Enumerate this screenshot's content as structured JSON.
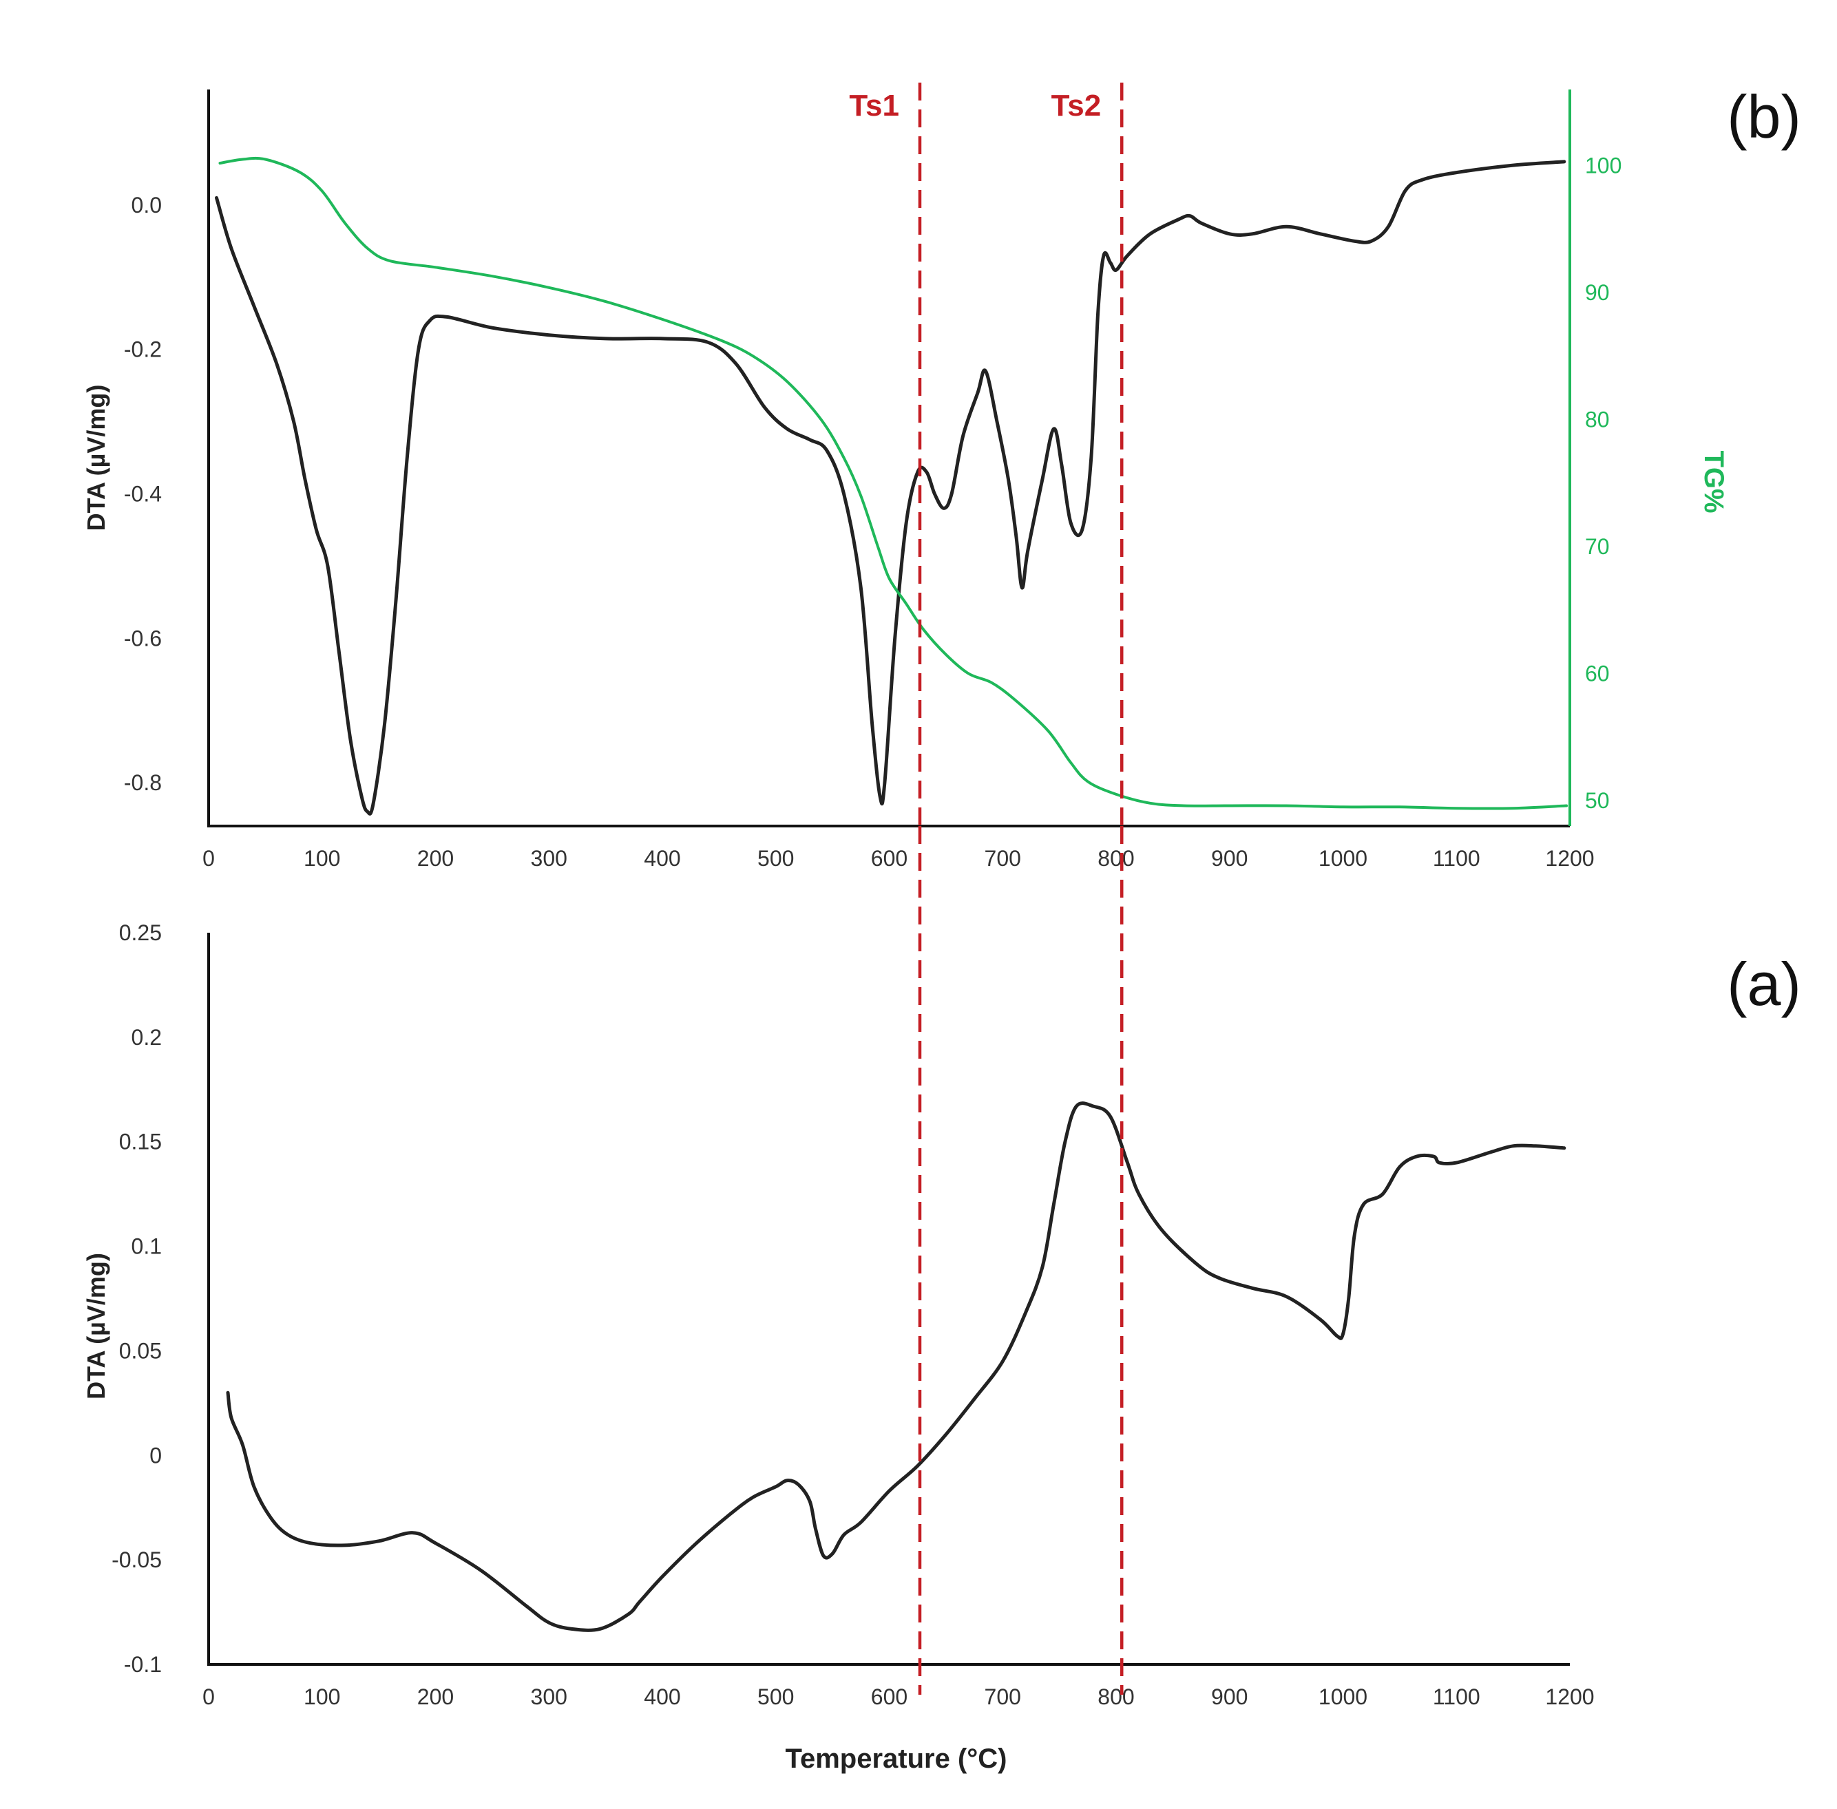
{
  "colors": {
    "dta": "#222222",
    "tg": "#1fb85a",
    "marker": "#c41e24",
    "axis": "#111111"
  },
  "chart_data": [
    {
      "panel": "(b)",
      "type": "line",
      "xlim": [
        0,
        1200
      ],
      "x_ticks": [
        "0",
        "100",
        "200",
        "300",
        "400",
        "500",
        "600",
        "700",
        "800",
        "900",
        "1000",
        "1100",
        "1200"
      ],
      "ylabel": "DTA (µV/mg)",
      "ylim": [
        -0.86,
        0.16
      ],
      "y_ticks": [
        {
          "v": 0.0,
          "label": "0.0"
        },
        {
          "v": -0.2,
          "label": "-0.2"
        },
        {
          "v": -0.4,
          "label": "-0.4"
        },
        {
          "v": -0.6,
          "label": "-0.6"
        },
        {
          "v": -0.8,
          "label": "-0.8"
        }
      ],
      "y2label": "TG%",
      "y2lim": [
        48,
        106
      ],
      "y2_ticks": [
        {
          "v": 100,
          "label": "100"
        },
        {
          "v": 90,
          "label": "90"
        },
        {
          "v": 80,
          "label": "80"
        },
        {
          "v": 70,
          "label": "70"
        },
        {
          "v": 60,
          "label": "60"
        },
        {
          "v": 50,
          "label": "50"
        }
      ],
      "markers": [
        {
          "x": 627,
          "label": "Ts1"
        },
        {
          "x": 805,
          "label": "Ts2"
        }
      ],
      "series": [
        {
          "name": "DTA",
          "axis": "left",
          "points": [
            [
              7,
              0.01
            ],
            [
              20,
              -0.06
            ],
            [
              40,
              -0.14
            ],
            [
              60,
              -0.22
            ],
            [
              75,
              -0.3
            ],
            [
              85,
              -0.38
            ],
            [
              95,
              -0.45
            ],
            [
              105,
              -0.5
            ],
            [
              115,
              -0.62
            ],
            [
              125,
              -0.74
            ],
            [
              135,
              -0.82
            ],
            [
              140,
              -0.84
            ],
            [
              145,
              -0.83
            ],
            [
              155,
              -0.72
            ],
            [
              165,
              -0.55
            ],
            [
              175,
              -0.35
            ],
            [
              185,
              -0.2
            ],
            [
              195,
              -0.16
            ],
            [
              210,
              -0.155
            ],
            [
              250,
              -0.17
            ],
            [
              300,
              -0.18
            ],
            [
              350,
              -0.185
            ],
            [
              400,
              -0.185
            ],
            [
              440,
              -0.19
            ],
            [
              465,
              -0.22
            ],
            [
              490,
              -0.28
            ],
            [
              510,
              -0.31
            ],
            [
              530,
              -0.325
            ],
            [
              545,
              -0.34
            ],
            [
              560,
              -0.4
            ],
            [
              575,
              -0.53
            ],
            [
              585,
              -0.72
            ],
            [
              592,
              -0.82
            ],
            [
              596,
              -0.8
            ],
            [
              605,
              -0.6
            ],
            [
              615,
              -0.44
            ],
            [
              625,
              -0.37
            ],
            [
              633,
              -0.37
            ],
            [
              640,
              -0.4
            ],
            [
              648,
              -0.42
            ],
            [
              655,
              -0.4
            ],
            [
              665,
              -0.32
            ],
            [
              678,
              -0.26
            ],
            [
              685,
              -0.23
            ],
            [
              695,
              -0.3
            ],
            [
              705,
              -0.38
            ],
            [
              712,
              -0.46
            ],
            [
              717,
              -0.53
            ],
            [
              722,
              -0.48
            ],
            [
              735,
              -0.38
            ],
            [
              745,
              -0.31
            ],
            [
              752,
              -0.36
            ],
            [
              760,
              -0.44
            ],
            [
              770,
              -0.45
            ],
            [
              778,
              -0.35
            ],
            [
              784,
              -0.15
            ],
            [
              789,
              -0.07
            ],
            [
              795,
              -0.08
            ],
            [
              800,
              -0.09
            ],
            [
              810,
              -0.07
            ],
            [
              830,
              -0.04
            ],
            [
              855,
              -0.02
            ],
            [
              865,
              -0.015
            ],
            [
              875,
              -0.025
            ],
            [
              900,
              -0.04
            ],
            [
              920,
              -0.04
            ],
            [
              950,
              -0.03
            ],
            [
              980,
              -0.04
            ],
            [
              1010,
              -0.05
            ],
            [
              1025,
              -0.05
            ],
            [
              1040,
              -0.03
            ],
            [
              1055,
              0.02
            ],
            [
              1070,
              0.035
            ],
            [
              1100,
              0.045
            ],
            [
              1150,
              0.055
            ],
            [
              1195,
              0.06
            ]
          ]
        },
        {
          "name": "TG%",
          "axis": "right",
          "points": [
            [
              10,
              100.2
            ],
            [
              30,
              100.5
            ],
            [
              50,
              100.5
            ],
            [
              80,
              99.5
            ],
            [
              100,
              98
            ],
            [
              120,
              95.5
            ],
            [
              140,
              93.5
            ],
            [
              160,
              92.5
            ],
            [
              200,
              92
            ],
            [
              250,
              91.3
            ],
            [
              300,
              90.4
            ],
            [
              350,
              89.3
            ],
            [
              400,
              87.9
            ],
            [
              450,
              86.3
            ],
            [
              480,
              85
            ],
            [
              510,
              83
            ],
            [
              540,
              80
            ],
            [
              560,
              77
            ],
            [
              575,
              74
            ],
            [
              590,
              70
            ],
            [
              600,
              67.5
            ],
            [
              615,
              65.5
            ],
            [
              630,
              63.5
            ],
            [
              650,
              61.5
            ],
            [
              670,
              60
            ],
            [
              690,
              59.3
            ],
            [
              710,
              58
            ],
            [
              740,
              55.5
            ],
            [
              760,
              53
            ],
            [
              775,
              51.5
            ],
            [
              800,
              50.5
            ],
            [
              830,
              49.8
            ],
            [
              860,
              49.6
            ],
            [
              900,
              49.6
            ],
            [
              950,
              49.6
            ],
            [
              1000,
              49.5
            ],
            [
              1050,
              49.5
            ],
            [
              1100,
              49.4
            ],
            [
              1150,
              49.4
            ],
            [
              1197,
              49.6
            ]
          ]
        }
      ]
    },
    {
      "panel": "(a)",
      "type": "line",
      "xlim": [
        0,
        1200
      ],
      "x_ticks": [
        "0",
        "100",
        "200",
        "300",
        "400",
        "500",
        "600",
        "700",
        "800",
        "900",
        "1000",
        "1100",
        "1200"
      ],
      "xlabel": "Temperature (°C)",
      "ylabel": "DTA (µV/mg)",
      "ylim": [
        -0.1,
        0.25
      ],
      "y_ticks": [
        {
          "v": 0.25,
          "label": "0.25"
        },
        {
          "v": 0.2,
          "label": "0.2"
        },
        {
          "v": 0.15,
          "label": "0.15"
        },
        {
          "v": 0.1,
          "label": "0.1"
        },
        {
          "v": 0.05,
          "label": "0.05"
        },
        {
          "v": 0,
          "label": "0"
        },
        {
          "v": -0.05,
          "label": "-0.05"
        },
        {
          "v": -0.1,
          "label": "-0.1"
        }
      ],
      "markers": [
        {
          "x": 627,
          "label": ""
        },
        {
          "x": 805,
          "label": ""
        }
      ],
      "series": [
        {
          "name": "DTA",
          "axis": "left",
          "points": [
            [
              17,
              0.03
            ],
            [
              20,
              0.018
            ],
            [
              30,
              0.005
            ],
            [
              40,
              -0.015
            ],
            [
              55,
              -0.03
            ],
            [
              70,
              -0.038
            ],
            [
              90,
              -0.042
            ],
            [
              120,
              -0.043
            ],
            [
              150,
              -0.041
            ],
            [
              180,
              -0.037
            ],
            [
              200,
              -0.042
            ],
            [
              240,
              -0.055
            ],
            [
              280,
              -0.072
            ],
            [
              300,
              -0.08
            ],
            [
              320,
              -0.083
            ],
            [
              345,
              -0.083
            ],
            [
              370,
              -0.076
            ],
            [
              380,
              -0.07
            ],
            [
              400,
              -0.058
            ],
            [
              430,
              -0.042
            ],
            [
              460,
              -0.028
            ],
            [
              480,
              -0.02
            ],
            [
              500,
              -0.015
            ],
            [
              510,
              -0.012
            ],
            [
              520,
              -0.014
            ],
            [
              530,
              -0.022
            ],
            [
              535,
              -0.035
            ],
            [
              542,
              -0.048
            ],
            [
              550,
              -0.047
            ],
            [
              560,
              -0.038
            ],
            [
              575,
              -0.032
            ],
            [
              600,
              -0.017
            ],
            [
              625,
              -0.005
            ],
            [
              650,
              0.01
            ],
            [
              675,
              0.027
            ],
            [
              700,
              0.045
            ],
            [
              720,
              0.068
            ],
            [
              735,
              0.09
            ],
            [
              745,
              0.12
            ],
            [
              755,
              0.15
            ],
            [
              765,
              0.167
            ],
            [
              780,
              0.167
            ],
            [
              795,
              0.162
            ],
            [
              810,
              0.14
            ],
            [
              820,
              0.125
            ],
            [
              840,
              0.108
            ],
            [
              870,
              0.092
            ],
            [
              890,
              0.085
            ],
            [
              920,
              0.08
            ],
            [
              950,
              0.076
            ],
            [
              980,
              0.065
            ],
            [
              995,
              0.057
            ],
            [
              1000,
              0.058
            ],
            [
              1005,
              0.075
            ],
            [
              1010,
              0.105
            ],
            [
              1018,
              0.12
            ],
            [
              1035,
              0.125
            ],
            [
              1050,
              0.138
            ],
            [
              1065,
              0.143
            ],
            [
              1080,
              0.143
            ],
            [
              1085,
              0.14
            ],
            [
              1100,
              0.14
            ],
            [
              1130,
              0.145
            ],
            [
              1150,
              0.148
            ],
            [
              1170,
              0.148
            ],
            [
              1195,
              0.147
            ]
          ]
        }
      ]
    }
  ],
  "panel_labels": {
    "b": "(b)",
    "a": "(a)"
  }
}
